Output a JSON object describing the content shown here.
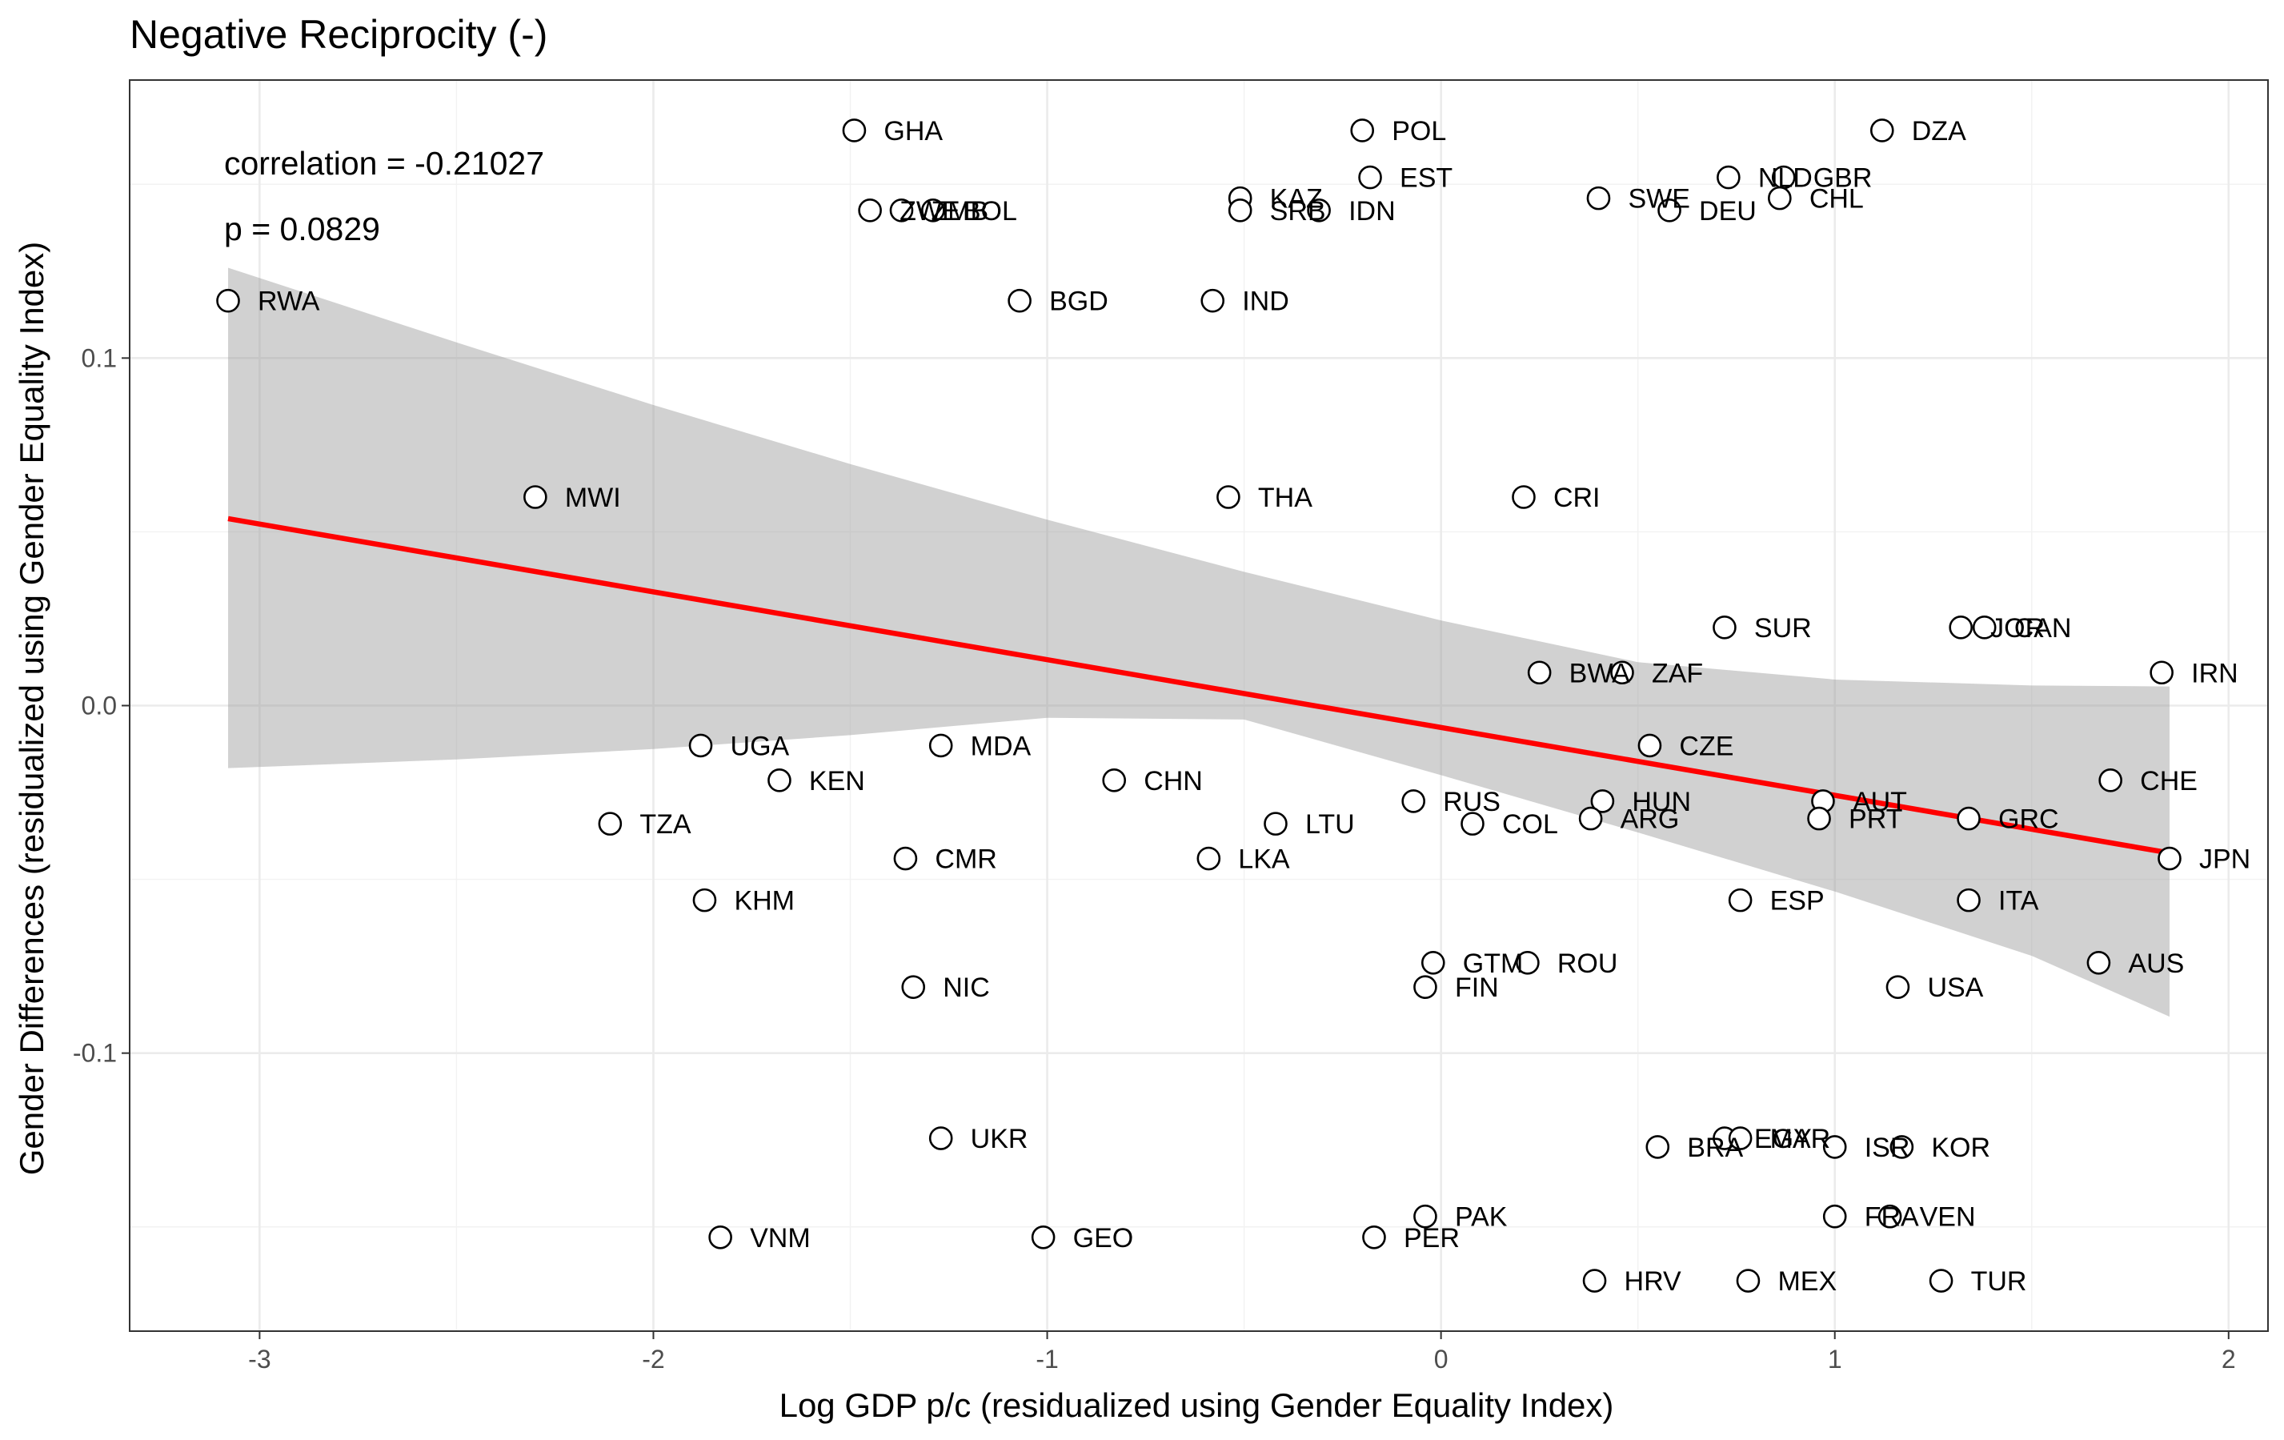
{
  "chart_data": {
    "type": "scatter",
    "title": "Negative Reciprocity (-)",
    "xlabel": "Log GDP p/c (residualized using Gender Equality Index)",
    "ylabel": "Gender Differences (residualized using Gender Equality Index)",
    "xlim": [
      -3.33,
      2.1
    ],
    "ylim": [
      -0.18,
      0.18
    ],
    "x_ticks": [
      -3,
      -2,
      -1,
      0,
      1,
      2
    ],
    "x_tick_labels": [
      "-3",
      "-2",
      "-1",
      "0",
      "1",
      "2"
    ],
    "y_ticks": [
      -0.1,
      0.0,
      0.1
    ],
    "y_tick_labels": [
      "-0.1",
      "0.0",
      "0.1"
    ],
    "grid": true,
    "annotations": [
      "correlation = -0.21027",
      "p = 0.0829"
    ],
    "fit": {
      "x": [
        -3.08,
        1.85
      ],
      "y": [
        0.0538,
        -0.0424
      ],
      "ribbon_x": [
        -3.08,
        -2.5,
        -2.0,
        -1.5,
        -1.0,
        -0.5,
        0.0,
        0.5,
        1.0,
        1.5,
        1.85
      ],
      "ribbon_upper": [
        0.126,
        0.1045,
        0.0865,
        0.0695,
        0.0535,
        0.0385,
        0.0245,
        0.0125,
        0.0075,
        0.0058,
        0.0055
      ],
      "ribbon_lower": [
        -0.018,
        -0.0155,
        -0.0125,
        -0.0085,
        -0.0035,
        -0.004,
        -0.02,
        -0.0365,
        -0.0535,
        -0.072,
        -0.0895
      ],
      "color": "#ff0000"
    },
    "points": [
      {
        "label": "GHA",
        "x": -1.49,
        "y": 0.1655
      },
      {
        "label": "POL",
        "x": -0.2,
        "y": 0.1655
      },
      {
        "label": "DZA",
        "x": 1.12,
        "y": 0.1655
      },
      {
        "label": "EST",
        "x": -0.18,
        "y": 0.152
      },
      {
        "label": "NLD",
        "x": 0.73,
        "y": 0.152
      },
      {
        "label": "GBR",
        "x": 0.87,
        "y": 0.152
      },
      {
        "label": "KAZ",
        "x": -0.51,
        "y": 0.146
      },
      {
        "label": "SWE",
        "x": 0.4,
        "y": 0.146
      },
      {
        "label": "CHL",
        "x": 0.86,
        "y": 0.146
      },
      {
        "label": "ZWE",
        "x": -1.45,
        "y": 0.1425
      },
      {
        "label": "ZMB",
        "x": -1.37,
        "y": 0.1425
      },
      {
        "label": "BOL",
        "x": -1.29,
        "y": 0.1425
      },
      {
        "label": "SRB",
        "x": -0.51,
        "y": 0.1425
      },
      {
        "label": "IDN",
        "x": -0.31,
        "y": 0.1425
      },
      {
        "label": "DEU",
        "x": 0.58,
        "y": 0.1425
      },
      {
        "label": "RWA",
        "x": -3.08,
        "y": 0.1165
      },
      {
        "label": "BGD",
        "x": -1.07,
        "y": 0.1165
      },
      {
        "label": "IND",
        "x": -0.58,
        "y": 0.1165
      },
      {
        "label": "MWI",
        "x": -2.3,
        "y": 0.06
      },
      {
        "label": "THA",
        "x": -0.54,
        "y": 0.06
      },
      {
        "label": "CRI",
        "x": 0.21,
        "y": 0.06
      },
      {
        "label": "SUR",
        "x": 0.72,
        "y": 0.0225
      },
      {
        "label": "JOR",
        "x": 1.32,
        "y": 0.0225
      },
      {
        "label": "CAN",
        "x": 1.38,
        "y": 0.0225
      },
      {
        "label": "BWA",
        "x": 0.25,
        "y": 0.0095
      },
      {
        "label": "ZAF",
        "x": 0.46,
        "y": 0.0095
      },
      {
        "label": "IRN",
        "x": 1.83,
        "y": 0.0095
      },
      {
        "label": "UGA",
        "x": -1.88,
        "y": -0.0115
      },
      {
        "label": "MDA",
        "x": -1.27,
        "y": -0.0115
      },
      {
        "label": "CZE",
        "x": 0.53,
        "y": -0.0115
      },
      {
        "label": "KEN",
        "x": -1.68,
        "y": -0.0215
      },
      {
        "label": "CHN",
        "x": -0.83,
        "y": -0.0215
      },
      {
        "label": "CHE",
        "x": 1.7,
        "y": -0.0215
      },
      {
        "label": "RUS",
        "x": -0.07,
        "y": -0.0275
      },
      {
        "label": "HUN",
        "x": 0.41,
        "y": -0.0275
      },
      {
        "label": "AUT",
        "x": 0.97,
        "y": -0.0275
      },
      {
        "label": "TZA",
        "x": -2.11,
        "y": -0.034
      },
      {
        "label": "LTU",
        "x": -0.42,
        "y": -0.034
      },
      {
        "label": "COL",
        "x": 0.08,
        "y": -0.034
      },
      {
        "label": "ARG",
        "x": 0.38,
        "y": -0.0325
      },
      {
        "label": "PRT",
        "x": 0.96,
        "y": -0.0325
      },
      {
        "label": "GRC",
        "x": 1.34,
        "y": -0.0325
      },
      {
        "label": "CMR",
        "x": -1.36,
        "y": -0.044
      },
      {
        "label": "LKA",
        "x": -0.59,
        "y": -0.044
      },
      {
        "label": "JPN",
        "x": 1.85,
        "y": -0.044
      },
      {
        "label": "KHM",
        "x": -1.87,
        "y": -0.056
      },
      {
        "label": "ESP",
        "x": 0.76,
        "y": -0.056
      },
      {
        "label": "ITA",
        "x": 1.34,
        "y": -0.056
      },
      {
        "label": "GTM",
        "x": -0.02,
        "y": -0.074
      },
      {
        "label": "ROU",
        "x": 0.22,
        "y": -0.074
      },
      {
        "label": "AUS",
        "x": 1.67,
        "y": -0.074
      },
      {
        "label": "NIC",
        "x": -1.34,
        "y": -0.081
      },
      {
        "label": "FIN",
        "x": -0.04,
        "y": -0.081
      },
      {
        "label": "USA",
        "x": 1.16,
        "y": -0.081
      },
      {
        "label": "UKR",
        "x": -1.27,
        "y": -0.1245
      },
      {
        "label": "EGY",
        "x": 0.72,
        "y": -0.1245
      },
      {
        "label": "MAR",
        "x": 0.76,
        "y": -0.1245
      },
      {
        "label": "BRA",
        "x": 0.55,
        "y": -0.127
      },
      {
        "label": "ISR",
        "x": 1.0,
        "y": -0.127
      },
      {
        "label": "KOR",
        "x": 1.17,
        "y": -0.127
      },
      {
        "label": "PAK",
        "x": -0.04,
        "y": -0.147
      },
      {
        "label": "FRA",
        "x": 1.0,
        "y": -0.147
      },
      {
        "label": "VEN",
        "x": 1.14,
        "y": -0.147
      },
      {
        "label": "VNM",
        "x": -1.83,
        "y": -0.153
      },
      {
        "label": "GEO",
        "x": -1.01,
        "y": -0.153
      },
      {
        "label": "PER",
        "x": -0.17,
        "y": -0.153
      },
      {
        "label": "HRV",
        "x": 0.39,
        "y": -0.1655
      },
      {
        "label": "MEX",
        "x": 0.78,
        "y": -0.1655
      },
      {
        "label": "TUR",
        "x": 1.27,
        "y": -0.1655
      }
    ]
  }
}
